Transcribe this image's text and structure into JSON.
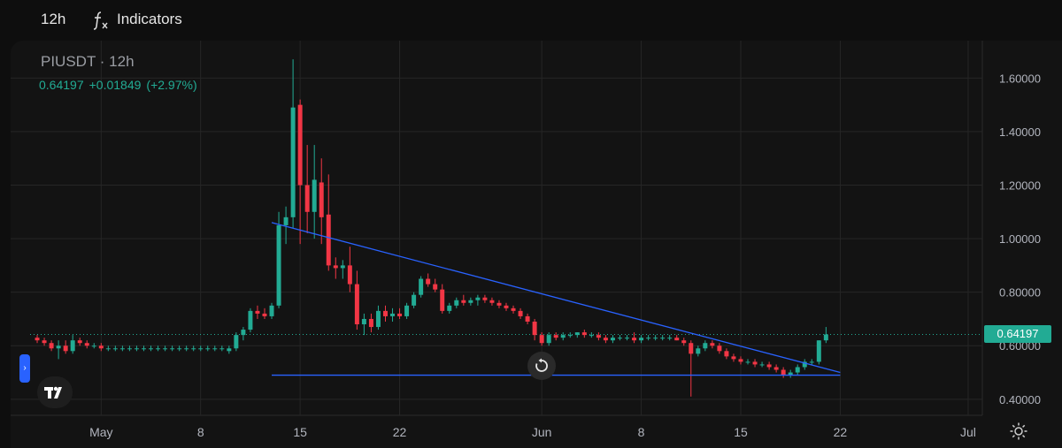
{
  "toolbar": {
    "interval": "12h",
    "indicators_label": "Indicators"
  },
  "legend": {
    "symbol": "PIUSDT",
    "interval": "12h",
    "last": "0.64197",
    "change": "+0.01849",
    "change_pct": "(+2.97%)"
  },
  "last_price_badge": "0.64197",
  "colors": {
    "up": "#22ab94",
    "down": "#f23645",
    "trendline": "#2962ff",
    "background": "#131313",
    "grid": "#262626"
  },
  "chart_data": {
    "type": "candlestick",
    "title": "PIUSDT · 12h",
    "interval": "12h",
    "ylim": [
      0.34,
      1.72
    ],
    "xlim": [
      "2025-04-26",
      "2025-07-02"
    ],
    "y_ticks": [
      "1.60000",
      "1.40000",
      "1.20000",
      "1.00000",
      "0.80000",
      "0.60000",
      "0.40000"
    ],
    "x_ticks": [
      {
        "label": "May",
        "date": "2025-05-01"
      },
      {
        "label": "8",
        "date": "2025-05-08"
      },
      {
        "label": "15",
        "date": "2025-05-15"
      },
      {
        "label": "22",
        "date": "2025-05-22"
      },
      {
        "label": "Jun",
        "date": "2025-06-01"
      },
      {
        "label": "8",
        "date": "2025-06-08"
      },
      {
        "label": "15",
        "date": "2025-06-15"
      },
      {
        "label": "22",
        "date": "2025-06-22"
      },
      {
        "label": "Jul",
        "date": "2025-07-01"
      }
    ],
    "grid": true,
    "last_price": 0.64197,
    "trendlines": [
      {
        "from": {
          "date": "2025-05-13",
          "value": 1.06
        },
        "to": {
          "date": "2025-06-22",
          "value": 0.5
        }
      },
      {
        "from": {
          "date": "2025-05-13",
          "value": 0.49
        },
        "to": {
          "date": "2025-06-22",
          "value": 0.49
        }
      }
    ],
    "candles": [
      {
        "o": 0.63,
        "h": 0.64,
        "l": 0.61,
        "c": 0.62
      },
      {
        "o": 0.62,
        "h": 0.63,
        "l": 0.6,
        "c": 0.61
      },
      {
        "o": 0.61,
        "h": 0.62,
        "l": 0.58,
        "c": 0.59
      },
      {
        "o": 0.59,
        "h": 0.62,
        "l": 0.55,
        "c": 0.6
      },
      {
        "o": 0.6,
        "h": 0.62,
        "l": 0.57,
        "c": 0.58
      },
      {
        "o": 0.58,
        "h": 0.64,
        "l": 0.57,
        "c": 0.62
      },
      {
        "o": 0.62,
        "h": 0.63,
        "l": 0.6,
        "c": 0.61
      },
      {
        "o": 0.61,
        "h": 0.62,
        "l": 0.59,
        "c": 0.6
      },
      {
        "o": 0.6,
        "h": 0.61,
        "l": 0.59,
        "c": 0.6
      },
      {
        "o": 0.6,
        "h": 0.61,
        "l": 0.58,
        "c": 0.59
      },
      {
        "o": 0.59,
        "h": 0.6,
        "l": 0.58,
        "c": 0.59
      },
      {
        "o": 0.59,
        "h": 0.6,
        "l": 0.58,
        "c": 0.59
      },
      {
        "o": 0.59,
        "h": 0.6,
        "l": 0.58,
        "c": 0.59
      },
      {
        "o": 0.59,
        "h": 0.6,
        "l": 0.58,
        "c": 0.59
      },
      {
        "o": 0.59,
        "h": 0.6,
        "l": 0.58,
        "c": 0.59
      },
      {
        "o": 0.59,
        "h": 0.6,
        "l": 0.58,
        "c": 0.59
      },
      {
        "o": 0.59,
        "h": 0.6,
        "l": 0.58,
        "c": 0.59
      },
      {
        "o": 0.59,
        "h": 0.6,
        "l": 0.58,
        "c": 0.59
      },
      {
        "o": 0.59,
        "h": 0.6,
        "l": 0.58,
        "c": 0.59
      },
      {
        "o": 0.59,
        "h": 0.6,
        "l": 0.58,
        "c": 0.59
      },
      {
        "o": 0.59,
        "h": 0.6,
        "l": 0.58,
        "c": 0.59
      },
      {
        "o": 0.59,
        "h": 0.6,
        "l": 0.58,
        "c": 0.59
      },
      {
        "o": 0.59,
        "h": 0.6,
        "l": 0.58,
        "c": 0.59
      },
      {
        "o": 0.59,
        "h": 0.6,
        "l": 0.58,
        "c": 0.59
      },
      {
        "o": 0.59,
        "h": 0.6,
        "l": 0.58,
        "c": 0.59
      },
      {
        "o": 0.59,
        "h": 0.6,
        "l": 0.58,
        "c": 0.59
      },
      {
        "o": 0.59,
        "h": 0.6,
        "l": 0.58,
        "c": 0.59
      },
      {
        "o": 0.58,
        "h": 0.6,
        "l": 0.57,
        "c": 0.59
      },
      {
        "o": 0.59,
        "h": 0.65,
        "l": 0.58,
        "c": 0.64
      },
      {
        "o": 0.64,
        "h": 0.67,
        "l": 0.62,
        "c": 0.66
      },
      {
        "o": 0.66,
        "h": 0.74,
        "l": 0.65,
        "c": 0.73
      },
      {
        "o": 0.73,
        "h": 0.75,
        "l": 0.7,
        "c": 0.72
      },
      {
        "o": 0.72,
        "h": 0.74,
        "l": 0.7,
        "c": 0.71
      },
      {
        "o": 0.71,
        "h": 0.76,
        "l": 0.7,
        "c": 0.75
      },
      {
        "o": 0.75,
        "h": 1.1,
        "l": 0.74,
        "c": 1.05
      },
      {
        "o": 1.05,
        "h": 1.12,
        "l": 0.98,
        "c": 1.08
      },
      {
        "o": 1.08,
        "h": 1.67,
        "l": 1.04,
        "c": 1.49
      },
      {
        "o": 1.5,
        "h": 1.52,
        "l": 0.98,
        "c": 1.2
      },
      {
        "o": 1.2,
        "h": 1.35,
        "l": 1.02,
        "c": 1.1
      },
      {
        "o": 1.1,
        "h": 1.35,
        "l": 1.0,
        "c": 1.22
      },
      {
        "o": 1.21,
        "h": 1.3,
        "l": 0.98,
        "c": 1.08
      },
      {
        "o": 1.09,
        "h": 1.24,
        "l": 0.88,
        "c": 0.9
      },
      {
        "o": 0.9,
        "h": 0.93,
        "l": 0.85,
        "c": 0.89
      },
      {
        "o": 0.89,
        "h": 0.92,
        "l": 0.85,
        "c": 0.9
      },
      {
        "o": 0.9,
        "h": 0.97,
        "l": 0.8,
        "c": 0.83
      },
      {
        "o": 0.83,
        "h": 0.88,
        "l": 0.66,
        "c": 0.68
      },
      {
        "o": 0.68,
        "h": 0.72,
        "l": 0.64,
        "c": 0.7
      },
      {
        "o": 0.7,
        "h": 0.72,
        "l": 0.65,
        "c": 0.67
      },
      {
        "o": 0.67,
        "h": 0.75,
        "l": 0.66,
        "c": 0.73
      },
      {
        "o": 0.73,
        "h": 0.75,
        "l": 0.69,
        "c": 0.71
      },
      {
        "o": 0.71,
        "h": 0.74,
        "l": 0.69,
        "c": 0.72
      },
      {
        "o": 0.72,
        "h": 0.74,
        "l": 0.7,
        "c": 0.71
      },
      {
        "o": 0.71,
        "h": 0.76,
        "l": 0.7,
        "c": 0.75
      },
      {
        "o": 0.75,
        "h": 0.8,
        "l": 0.74,
        "c": 0.79
      },
      {
        "o": 0.79,
        "h": 0.86,
        "l": 0.78,
        "c": 0.85
      },
      {
        "o": 0.85,
        "h": 0.87,
        "l": 0.82,
        "c": 0.83
      },
      {
        "o": 0.83,
        "h": 0.85,
        "l": 0.8,
        "c": 0.81
      },
      {
        "o": 0.81,
        "h": 0.83,
        "l": 0.72,
        "c": 0.73
      },
      {
        "o": 0.73,
        "h": 0.76,
        "l": 0.72,
        "c": 0.75
      },
      {
        "o": 0.75,
        "h": 0.78,
        "l": 0.74,
        "c": 0.77
      },
      {
        "o": 0.77,
        "h": 0.79,
        "l": 0.75,
        "c": 0.76
      },
      {
        "o": 0.76,
        "h": 0.78,
        "l": 0.75,
        "c": 0.77
      },
      {
        "o": 0.77,
        "h": 0.79,
        "l": 0.75,
        "c": 0.78
      },
      {
        "o": 0.78,
        "h": 0.79,
        "l": 0.76,
        "c": 0.77
      },
      {
        "o": 0.77,
        "h": 0.78,
        "l": 0.75,
        "c": 0.76
      },
      {
        "o": 0.76,
        "h": 0.77,
        "l": 0.74,
        "c": 0.75
      },
      {
        "o": 0.75,
        "h": 0.76,
        "l": 0.73,
        "c": 0.74
      },
      {
        "o": 0.74,
        "h": 0.75,
        "l": 0.72,
        "c": 0.73
      },
      {
        "o": 0.73,
        "h": 0.74,
        "l": 0.7,
        "c": 0.71
      },
      {
        "o": 0.71,
        "h": 0.72,
        "l": 0.68,
        "c": 0.69
      },
      {
        "o": 0.69,
        "h": 0.7,
        "l": 0.62,
        "c": 0.64
      },
      {
        "o": 0.64,
        "h": 0.65,
        "l": 0.6,
        "c": 0.61
      },
      {
        "o": 0.61,
        "h": 0.65,
        "l": 0.6,
        "c": 0.64
      },
      {
        "o": 0.64,
        "h": 0.65,
        "l": 0.62,
        "c": 0.63
      },
      {
        "o": 0.63,
        "h": 0.65,
        "l": 0.62,
        "c": 0.64
      },
      {
        "o": 0.64,
        "h": 0.65,
        "l": 0.63,
        "c": 0.64
      },
      {
        "o": 0.64,
        "h": 0.65,
        "l": 0.63,
        "c": 0.65
      },
      {
        "o": 0.65,
        "h": 0.66,
        "l": 0.63,
        "c": 0.64
      },
      {
        "o": 0.64,
        "h": 0.65,
        "l": 0.63,
        "c": 0.64
      },
      {
        "o": 0.64,
        "h": 0.65,
        "l": 0.62,
        "c": 0.63
      },
      {
        "o": 0.63,
        "h": 0.64,
        "l": 0.61,
        "c": 0.62
      },
      {
        "o": 0.62,
        "h": 0.64,
        "l": 0.61,
        "c": 0.63
      },
      {
        "o": 0.63,
        "h": 0.64,
        "l": 0.62,
        "c": 0.63
      },
      {
        "o": 0.63,
        "h": 0.64,
        "l": 0.62,
        "c": 0.63
      },
      {
        "o": 0.63,
        "h": 0.65,
        "l": 0.61,
        "c": 0.62
      },
      {
        "o": 0.62,
        "h": 0.64,
        "l": 0.61,
        "c": 0.63
      },
      {
        "o": 0.63,
        "h": 0.64,
        "l": 0.62,
        "c": 0.63
      },
      {
        "o": 0.63,
        "h": 0.64,
        "l": 0.62,
        "c": 0.63
      },
      {
        "o": 0.63,
        "h": 0.64,
        "l": 0.62,
        "c": 0.63
      },
      {
        "o": 0.63,
        "h": 0.64,
        "l": 0.62,
        "c": 0.63
      },
      {
        "o": 0.63,
        "h": 0.64,
        "l": 0.62,
        "c": 0.62
      },
      {
        "o": 0.62,
        "h": 0.63,
        "l": 0.6,
        "c": 0.61
      },
      {
        "o": 0.61,
        "h": 0.62,
        "l": 0.41,
        "c": 0.57
      },
      {
        "o": 0.57,
        "h": 0.6,
        "l": 0.56,
        "c": 0.59
      },
      {
        "o": 0.59,
        "h": 0.62,
        "l": 0.58,
        "c": 0.61
      },
      {
        "o": 0.61,
        "h": 0.62,
        "l": 0.59,
        "c": 0.6
      },
      {
        "o": 0.6,
        "h": 0.61,
        "l": 0.57,
        "c": 0.58
      },
      {
        "o": 0.58,
        "h": 0.59,
        "l": 0.55,
        "c": 0.56
      },
      {
        "o": 0.56,
        "h": 0.57,
        "l": 0.54,
        "c": 0.55
      },
      {
        "o": 0.55,
        "h": 0.56,
        "l": 0.53,
        "c": 0.54
      },
      {
        "o": 0.54,
        "h": 0.55,
        "l": 0.53,
        "c": 0.54
      },
      {
        "o": 0.54,
        "h": 0.55,
        "l": 0.52,
        "c": 0.53
      },
      {
        "o": 0.53,
        "h": 0.54,
        "l": 0.52,
        "c": 0.53
      },
      {
        "o": 0.53,
        "h": 0.54,
        "l": 0.51,
        "c": 0.52
      },
      {
        "o": 0.52,
        "h": 0.53,
        "l": 0.5,
        "c": 0.51
      },
      {
        "o": 0.51,
        "h": 0.52,
        "l": 0.48,
        "c": 0.49
      },
      {
        "o": 0.49,
        "h": 0.51,
        "l": 0.48,
        "c": 0.5
      },
      {
        "o": 0.5,
        "h": 0.53,
        "l": 0.49,
        "c": 0.52
      },
      {
        "o": 0.52,
        "h": 0.55,
        "l": 0.51,
        "c": 0.54
      },
      {
        "o": 0.54,
        "h": 0.55,
        "l": 0.53,
        "c": 0.54
      },
      {
        "o": 0.54,
        "h": 0.62,
        "l": 0.53,
        "c": 0.62
      },
      {
        "o": 0.62,
        "h": 0.67,
        "l": 0.61,
        "c": 0.64197
      }
    ]
  }
}
